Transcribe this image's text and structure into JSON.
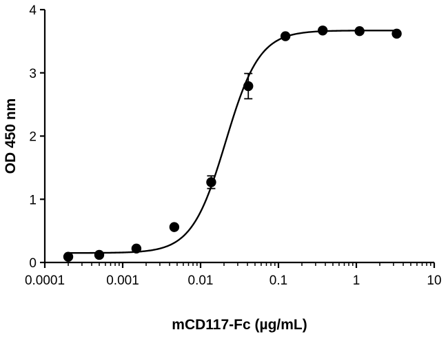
{
  "chart_data": {
    "type": "scatter",
    "title": "",
    "xlabel": "mCD117-Fc (µg/mL)",
    "ylabel": "OD 450 nm",
    "xscale": "log",
    "xlim": [
      0.0001,
      10
    ],
    "ylim": [
      0,
      4
    ],
    "grid": false,
    "x_tick_labels": [
      "0.0001",
      "0.001",
      "0.01",
      "0.1",
      "1",
      "10"
    ],
    "y_tick_labels": [
      "0",
      "1",
      "2",
      "3",
      "4"
    ],
    "series": [
      {
        "points": [
          {
            "x": 0.0002,
            "y": 0.09
          },
          {
            "x": 0.0005,
            "y": 0.12
          },
          {
            "x": 0.0015,
            "y": 0.22
          },
          {
            "x": 0.0046,
            "y": 0.56
          },
          {
            "x": 0.0137,
            "y": 1.27,
            "err": 0.1
          },
          {
            "x": 0.041,
            "y": 2.79,
            "err": 0.2
          },
          {
            "x": 0.123,
            "y": 3.58
          },
          {
            "x": 0.37,
            "y": 3.67
          },
          {
            "x": 1.1,
            "y": 3.66
          },
          {
            "x": 3.3,
            "y": 3.62
          }
        ],
        "fit": {
          "model": "4PL",
          "bottom": 0.15,
          "top": 3.67,
          "ec50": 0.021,
          "hill": 2.0
        }
      }
    ],
    "colors": {
      "markers": "#000000",
      "curve": "#000000",
      "axes": "#000000"
    }
  }
}
